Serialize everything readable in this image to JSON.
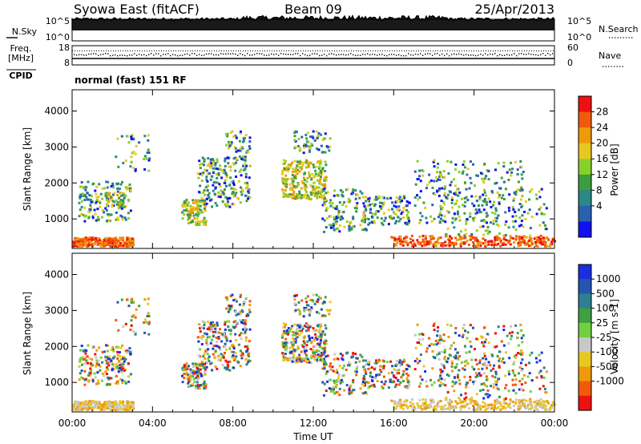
{
  "header": {
    "title": "Syowa East (fitACF)",
    "beam": "Beam 09",
    "date": "25/Apr/2013"
  },
  "summary_panels": {
    "nsky": {
      "label": "N.Sky",
      "left_ticks": [
        "10^5",
        "10^0"
      ],
      "right_ticks": [
        "10^5",
        "10^0"
      ],
      "right_label": "N.Search",
      "right_legend_line": "dotted"
    },
    "freq": {
      "label": "Freq.",
      "units": "[MHz]",
      "left_ticks": [
        "18",
        "8"
      ],
      "right_ticks": [
        "60",
        "0"
      ],
      "right_label": "Nave",
      "right_legend_line": "dotted"
    },
    "cpid": {
      "label": "CPID",
      "program": "normal (fast) 151 RF"
    }
  },
  "chart_data": [
    {
      "type": "heatmap",
      "name": "power",
      "ylabel": "Slant Range [km]",
      "yticks": [
        1000,
        2000,
        3000,
        4000
      ],
      "ylim": [
        180,
        4590
      ],
      "xlim_hours": [
        0,
        24
      ],
      "colorbar": {
        "label": "Power [dB]",
        "tick_labels": [
          "28",
          "24",
          "20",
          "16",
          "12",
          "8",
          "4"
        ],
        "colors": [
          "#f01010",
          "#f05a0a",
          "#f09a0a",
          "#e8c820",
          "#8ad02a",
          "#3e9c40",
          "#2a8888",
          "#2a60b0",
          "#1010f0"
        ]
      }
    },
    {
      "type": "heatmap",
      "name": "velocity",
      "ylabel": "Slant Range [km]",
      "yticks": [
        1000,
        2000,
        3000,
        4000
      ],
      "ylim": [
        180,
        4590
      ],
      "xlim_hours": [
        0,
        24
      ],
      "xlabel": "Time UT",
      "xtick_labels": [
        "00:00",
        "04:00",
        "08:00",
        "12:00",
        "16:00",
        "20:00",
        "00:00"
      ],
      "colorbar": {
        "label": "Velocity [m s-1]",
        "tick_labels": [
          "1000",
          "500",
          "100",
          "25",
          "-25",
          "-100",
          "-500",
          "-1000"
        ],
        "colors": [
          "#1a2ee0",
          "#2456b0",
          "#2c8090",
          "#3ea040",
          "#70d040",
          "#c8c8c8",
          "#e8c820",
          "#f09a0a",
          "#f05a0a",
          "#f01010"
        ]
      }
    }
  ]
}
